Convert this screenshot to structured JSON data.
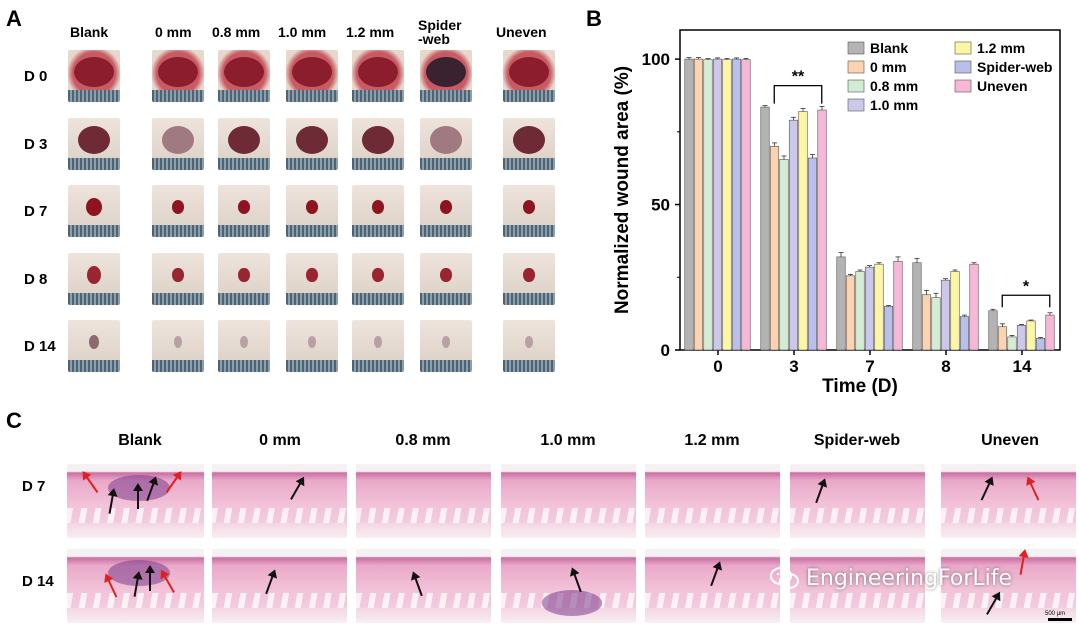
{
  "panels": {
    "a": "A",
    "b": "B",
    "c": "C"
  },
  "panelA": {
    "columns": [
      "Blank",
      "0 mm",
      "0.8 mm",
      "1.0 mm",
      "1.2 mm",
      "Spider\n-web",
      "Uneven"
    ],
    "rows": [
      "D 0",
      "D 3",
      "D 7",
      "D 8",
      "D 14"
    ]
  },
  "panelC": {
    "columns": [
      "Blank",
      "0 mm",
      "0.8 mm",
      "1.0 mm",
      "1.2 mm",
      "Spider-web",
      "Uneven"
    ],
    "rows": [
      "D 7",
      "D 14"
    ],
    "scale_bar": "500 μm"
  },
  "watermark": {
    "text": "EngineeringForLife",
    "icon": "wechat-icon"
  },
  "chart_data": {
    "type": "bar",
    "categories": [
      "0",
      "3",
      "7",
      "8",
      "14"
    ],
    "xlabel": "Time (D)",
    "ylabel": "Normalized wound area (%)",
    "ylim": [
      0,
      110
    ],
    "yticks": [
      0,
      50,
      100
    ],
    "legend_position": "top-right",
    "series": [
      {
        "name": "Blank",
        "color": "#b3b3b3",
        "values": [
          100,
          83.5,
          32,
          30,
          13.5
        ],
        "errors": [
          0.5,
          0.5,
          1.5,
          1.5,
          0.5
        ]
      },
      {
        "name": "0 mm",
        "color": "#fbd3b1",
        "values": [
          100,
          70,
          25.5,
          19,
          8
        ],
        "errors": [
          0.5,
          1.2,
          0.5,
          1.5,
          1
        ]
      },
      {
        "name": "0.8 mm",
        "color": "#d5ecd4",
        "values": [
          99.8,
          65.5,
          27,
          18,
          4.5
        ],
        "errors": [
          0.4,
          1.2,
          0.5,
          1.5,
          0.5
        ]
      },
      {
        "name": "1.0 mm",
        "color": "#cbc8ea",
        "values": [
          100,
          79,
          28.5,
          24,
          8.5
        ],
        "errors": [
          0.4,
          1,
          0.5,
          0.5,
          0.3
        ]
      },
      {
        "name": "1.2 mm",
        "color": "#fdf6a3",
        "values": [
          99.8,
          82,
          29.5,
          27,
          10
        ],
        "errors": [
          0.4,
          1,
          0.5,
          0.5,
          0.3
        ]
      },
      {
        "name": "Spider-web",
        "color": "#b9bfe8",
        "values": [
          100,
          66,
          15,
          11.5,
          4
        ],
        "errors": [
          0.4,
          1.2,
          0.3,
          0.5,
          0.3
        ]
      },
      {
        "name": "Uneven",
        "color": "#f6b8d6",
        "values": [
          99.8,
          82.5,
          30.5,
          29.5,
          12
        ],
        "errors": [
          0.4,
          1.2,
          1.5,
          0.5,
          0.8
        ]
      }
    ],
    "annotations": [
      {
        "text": "**",
        "category": "3"
      },
      {
        "text": "*",
        "category": "14"
      }
    ]
  }
}
